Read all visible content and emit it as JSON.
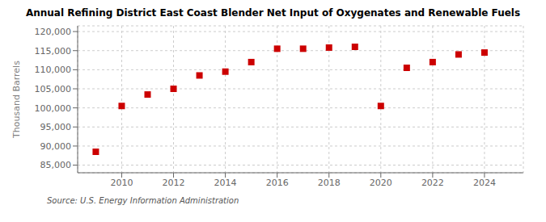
{
  "chart_data": {
    "type": "scatter",
    "title": "Annual Refining District East Coast Blender Net Input of Oxygenates and Renewable Fuels",
    "ylabel": "Thousand Barrels",
    "source": "Source: U.S. Energy Information Administration",
    "x": [
      2009,
      2010,
      2011,
      2012,
      2013,
      2014,
      2015,
      2016,
      2017,
      2018,
      2019,
      2020,
      2021,
      2022,
      2023,
      2024
    ],
    "values": [
      88500,
      100500,
      103500,
      105000,
      108500,
      109500,
      112000,
      115500,
      115500,
      115800,
      116000,
      100500,
      110500,
      112000,
      114000,
      114500
    ],
    "color": "#cc0000",
    "marker": "square",
    "xlim": [
      2008.3,
      2025.5
    ],
    "xticks": [
      2010,
      2012,
      2014,
      2016,
      2018,
      2020,
      2022,
      2024
    ],
    "ylim": [
      83000,
      121500
    ],
    "yticks": [
      {
        "value": 85000,
        "label": "85,000"
      },
      {
        "value": 90000,
        "label": "90,000"
      },
      {
        "value": 95000,
        "label": "95,000"
      },
      {
        "value": 100000,
        "label": "100,000"
      },
      {
        "value": 105000,
        "label": "105,000"
      },
      {
        "value": 110000,
        "label": "110,000"
      },
      {
        "value": 115000,
        "label": "115,000"
      },
      {
        "value": 120000,
        "label": "120,000"
      }
    ],
    "grid": true
  }
}
